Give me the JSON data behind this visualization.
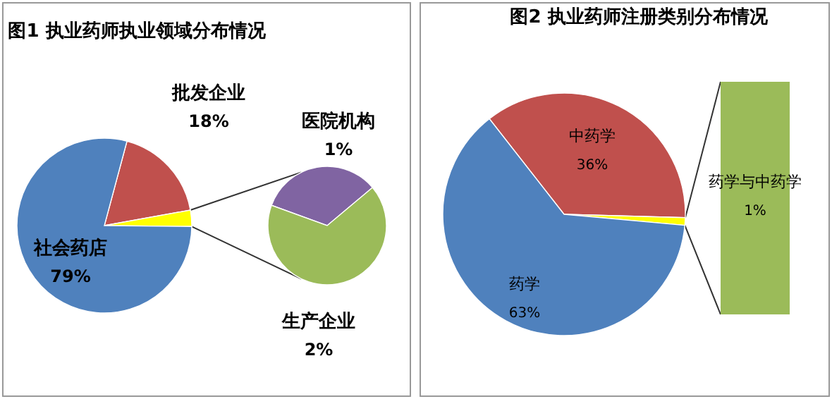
{
  "chart_data": [
    {
      "type": "pie",
      "title": "图1 执业药师执业领域分布情况",
      "categories": [
        "批发企业",
        null,
        "社会药店"
      ],
      "values": [
        18,
        3,
        79
      ],
      "colors": [
        "#c0504d",
        "#ffff00",
        "#4f81bd"
      ],
      "value_labels": [
        "18%",
        null,
        "79%"
      ]
    },
    {
      "type": "pie",
      "categories": [
        "医院机构",
        "生产企业"
      ],
      "values": [
        1,
        2
      ],
      "colors": [
        "#8064a2",
        "#9bbb59"
      ],
      "value_labels": [
        "1%",
        "2%"
      ]
    },
    {
      "type": "pie",
      "title": "图2  执业药师注册类别分布情况",
      "categories": [
        "中药学",
        null,
        "药学"
      ],
      "values": [
        36,
        1,
        63
      ],
      "colors": [
        "#c0504d",
        "#ffff00",
        "#4f81bd"
      ],
      "value_labels": [
        "36%",
        null,
        "63%"
      ]
    },
    {
      "type": "other",
      "categories": [
        "药学与中药学"
      ],
      "colors": [
        "#9bbb59"
      ],
      "value_labels": [
        "1%"
      ]
    }
  ]
}
